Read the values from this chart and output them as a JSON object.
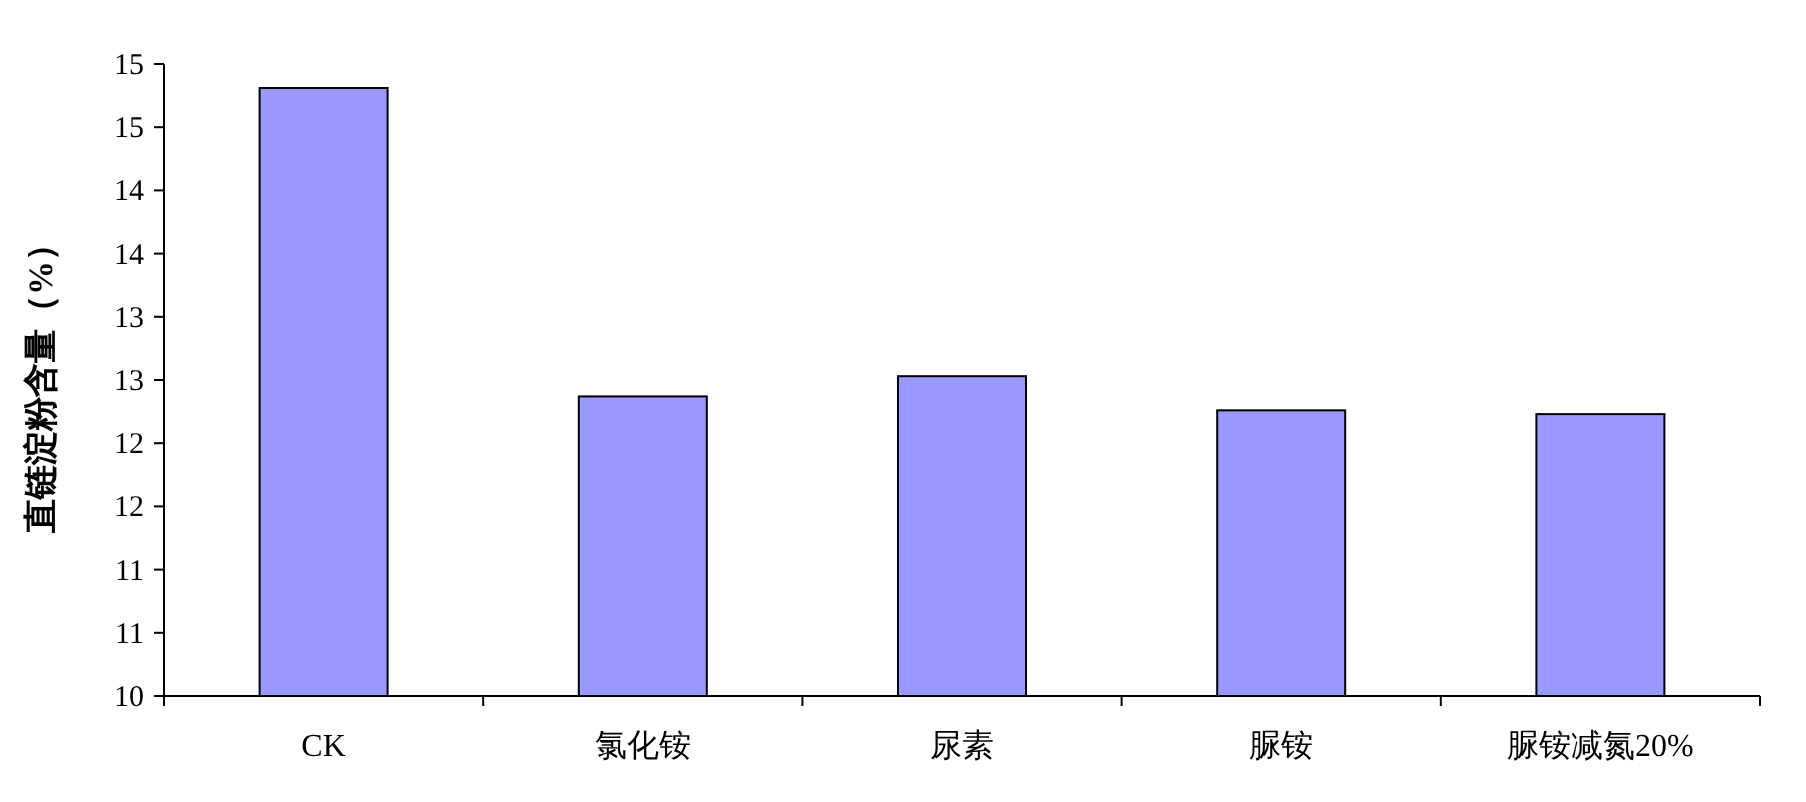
{
  "chart_data": {
    "type": "bar",
    "ylabel": "直链淀粉含量（%）",
    "categories": [
      "CK",
      "氯化铵",
      "尿素",
      "脲铵",
      "脲铵减氮20%"
    ],
    "values": [
      14.81,
      12.37,
      12.53,
      12.26,
      12.23
    ],
    "color": "#9999ff",
    "ylim": [
      10,
      15
    ],
    "yticks": [
      10,
      {
        "value": 10.5,
        "label": "11"
      },
      11,
      {
        "value": 11.5,
        "label": "12"
      },
      12,
      {
        "value": 12.5,
        "label": "13"
      },
      13,
      {
        "value": 13.5,
        "label": "14"
      },
      14,
      {
        "value": 14.5,
        "label": "15"
      },
      15
    ],
    "grid": false
  }
}
